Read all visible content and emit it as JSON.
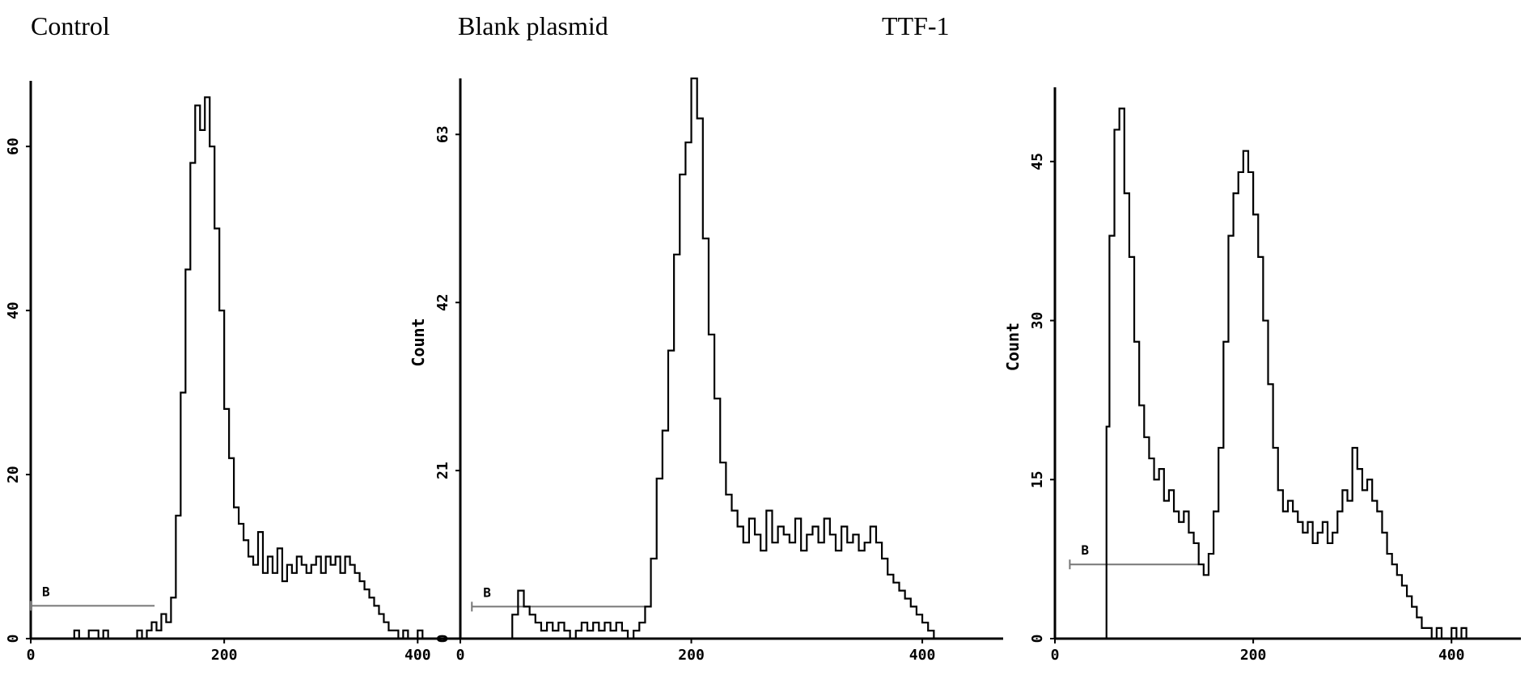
{
  "chart_data": [
    {
      "type": "line",
      "title": "Control",
      "xlabel": "",
      "ylabel": "",
      "xlim": [
        0,
        470
      ],
      "ylim": [
        0,
        68
      ],
      "x_ticks": [
        0,
        200,
        400
      ],
      "x_tick_labels": [
        "0",
        "200",
        "400"
      ],
      "y_ticks": [
        0,
        20,
        40,
        60
      ],
      "y_tick_labels": [
        "0",
        "20",
        "40",
        "60"
      ],
      "gate": {
        "label": "B",
        "x_start": 0,
        "x_end": 128,
        "y": 4
      },
      "series": [
        {
          "x": [
            0,
            40,
            45,
            50,
            55,
            60,
            70,
            75,
            80,
            90,
            100,
            110,
            115,
            120,
            125,
            130,
            135,
            140,
            145,
            150,
            155,
            160,
            165,
            170,
            175,
            180,
            185,
            190,
            195,
            200,
            205,
            210,
            215,
            220,
            225,
            230,
            235,
            240,
            245,
            250,
            255,
            260,
            265,
            270,
            275,
            280,
            285,
            290,
            295,
            300,
            305,
            310,
            315,
            320,
            325,
            330,
            335,
            340,
            345,
            350,
            355,
            360,
            365,
            370,
            375,
            380,
            385,
            390,
            395,
            400,
            405,
            410
          ],
          "y": [
            0,
            0,
            1,
            0,
            0,
            1,
            0,
            1,
            0,
            0,
            0,
            1,
            0,
            1,
            2,
            1,
            3,
            2,
            5,
            15,
            30,
            45,
            58,
            65,
            62,
            66,
            60,
            50,
            40,
            28,
            22,
            16,
            14,
            12,
            10,
            9,
            13,
            8,
            10,
            8,
            11,
            7,
            9,
            8,
            10,
            9,
            8,
            9,
            10,
            8,
            10,
            9,
            10,
            8,
            10,
            9,
            8,
            7,
            6,
            5,
            4,
            3,
            2,
            1,
            1,
            0,
            1,
            0,
            0,
            1,
            0,
            0
          ]
        }
      ]
    },
    {
      "type": "line",
      "title": "Blank plasmid",
      "xlabel": "",
      "ylabel": "Count",
      "xlim": [
        0,
        470
      ],
      "ylim": [
        0,
        70
      ],
      "x_ticks": [
        0,
        200,
        400
      ],
      "x_tick_labels": [
        "0",
        "200",
        "400"
      ],
      "y_ticks": [
        0,
        21,
        42,
        63
      ],
      "y_tick_labels": [
        "0",
        "21",
        "42",
        "63"
      ],
      "gate": {
        "label": "B",
        "x_start": 10,
        "x_end": 160,
        "y": 4
      },
      "series": [
        {
          "x": [
            40,
            45,
            50,
            55,
            60,
            65,
            70,
            75,
            80,
            85,
            90,
            95,
            100,
            105,
            110,
            115,
            120,
            125,
            130,
            135,
            140,
            145,
            150,
            155,
            160,
            165,
            170,
            175,
            180,
            185,
            190,
            195,
            200,
            205,
            210,
            215,
            220,
            225,
            230,
            235,
            240,
            245,
            250,
            255,
            260,
            265,
            270,
            275,
            280,
            285,
            290,
            295,
            300,
            305,
            310,
            315,
            320,
            325,
            330,
            335,
            340,
            345,
            350,
            355,
            360,
            365,
            370,
            375,
            380,
            385,
            390,
            395,
            400,
            405,
            410
          ],
          "y": [
            0,
            3,
            6,
            4,
            3,
            2,
            1,
            2,
            1,
            2,
            1,
            0,
            1,
            2,
            1,
            2,
            1,
            2,
            1,
            2,
            1,
            0,
            1,
            2,
            4,
            10,
            20,
            26,
            36,
            48,
            58,
            62,
            70,
            65,
            50,
            38,
            30,
            22,
            18,
            16,
            14,
            12,
            15,
            13,
            11,
            16,
            12,
            14,
            13,
            12,
            15,
            11,
            13,
            14,
            12,
            15,
            13,
            11,
            14,
            12,
            13,
            11,
            12,
            14,
            12,
            10,
            8,
            7,
            6,
            5,
            4,
            3,
            2,
            1,
            0
          ]
        }
      ]
    },
    {
      "type": "line",
      "title": "TTF-1",
      "xlabel": "",
      "ylabel": "Count",
      "xlim": [
        0,
        470
      ],
      "ylim": [
        0,
        52
      ],
      "x_ticks": [
        0,
        200,
        400
      ],
      "x_tick_labels": [
        "0",
        "200",
        "400"
      ],
      "y_ticks": [
        0,
        15,
        30,
        45
      ],
      "y_tick_labels": [
        "0",
        "15",
        "30",
        "45"
      ],
      "gate": {
        "label": "B",
        "x_start": 15,
        "x_end": 145,
        "y": 7
      },
      "series": [
        {
          "x": [
            50,
            52,
            55,
            60,
            65,
            70,
            75,
            80,
            85,
            90,
            95,
            100,
            105,
            110,
            115,
            120,
            125,
            130,
            135,
            140,
            145,
            150,
            155,
            160,
            165,
            170,
            175,
            180,
            185,
            190,
            195,
            200,
            205,
            210,
            215,
            220,
            225,
            230,
            235,
            240,
            245,
            250,
            255,
            260,
            265,
            270,
            275,
            280,
            285,
            290,
            295,
            300,
            305,
            310,
            315,
            320,
            325,
            330,
            335,
            340,
            345,
            350,
            355,
            360,
            365,
            370,
            375,
            380,
            385,
            390,
            395,
            400,
            405,
            410,
            415
          ],
          "y": [
            0,
            20,
            38,
            48,
            50,
            42,
            36,
            28,
            22,
            19,
            17,
            15,
            16,
            13,
            14,
            12,
            11,
            12,
            10,
            9,
            7,
            6,
            8,
            12,
            18,
            28,
            38,
            42,
            44,
            46,
            44,
            40,
            36,
            30,
            24,
            18,
            14,
            12,
            13,
            12,
            11,
            10,
            11,
            9,
            10,
            11,
            9,
            10,
            12,
            14,
            13,
            18,
            16,
            14,
            15,
            13,
            12,
            10,
            8,
            7,
            6,
            5,
            4,
            3,
            2,
            1,
            1,
            0,
            1,
            0,
            0,
            1,
            0,
            1,
            0
          ]
        }
      ]
    }
  ]
}
